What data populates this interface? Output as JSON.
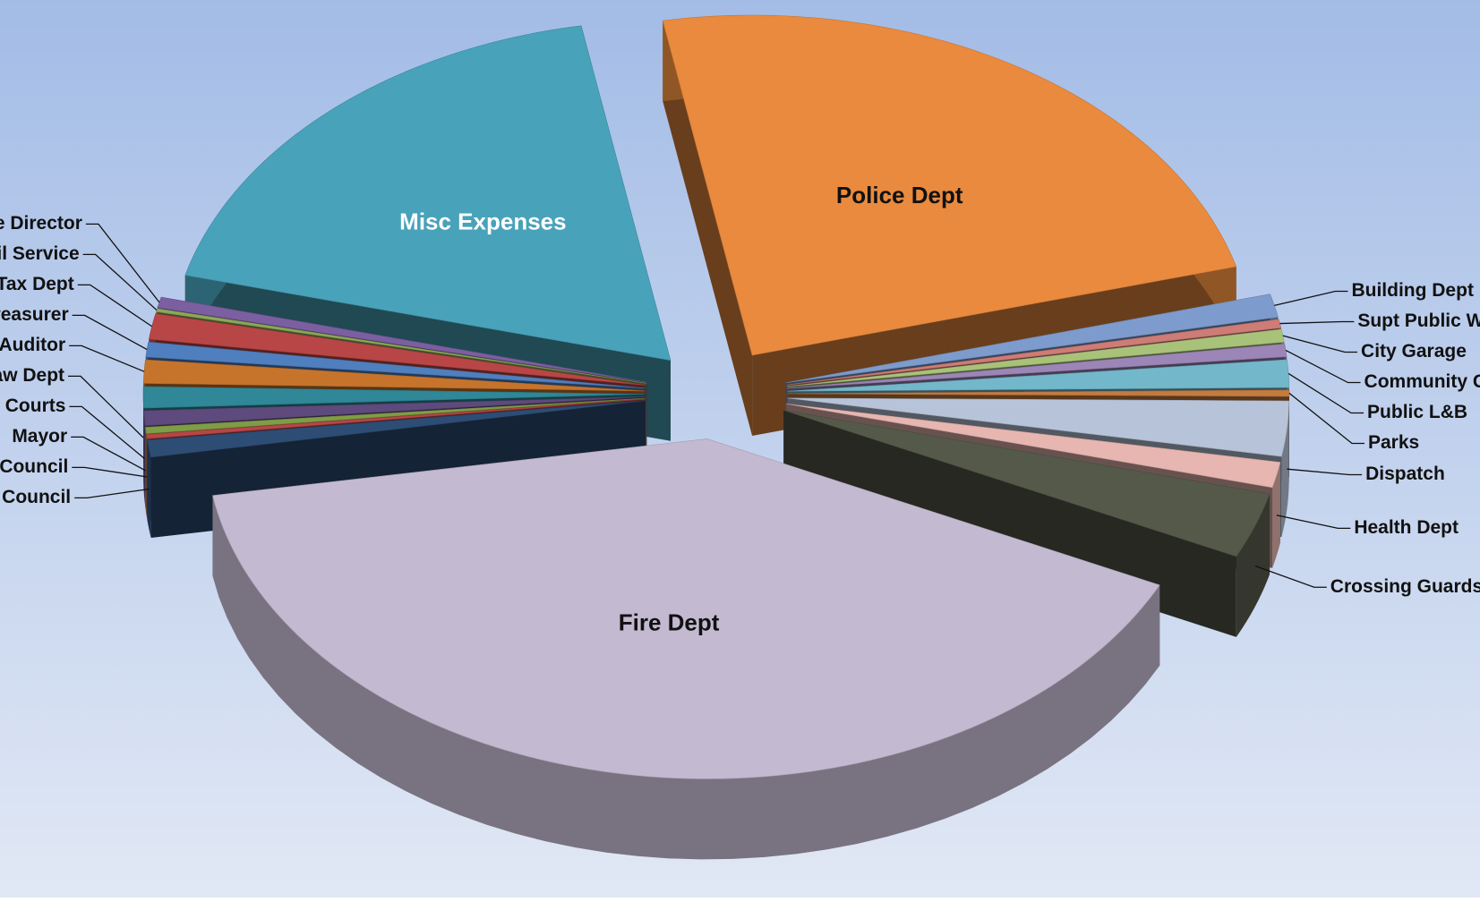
{
  "chart_data": {
    "type": "pie",
    "title": "",
    "style": "3D exploded pie",
    "slices": [
      {
        "label": "Police Dept",
        "value": 23.5,
        "color": "#E98A3E",
        "label_style": "inside-dark"
      },
      {
        "label": "Building Dept",
        "value": 1.1,
        "color": "#7D9BCC",
        "label_style": "callout"
      },
      {
        "label": "Supt Public Works",
        "value": 0.4,
        "color": "#CE7C76",
        "label_style": "callout"
      },
      {
        "label": "City Garage",
        "value": 0.6,
        "color": "#A9C27A",
        "label_style": "callout"
      },
      {
        "label": "Community Center",
        "value": 0.6,
        "color": "#9B86B7",
        "label_style": "callout"
      },
      {
        "label": "Public L&B",
        "value": 1.3,
        "color": "#73B7CB",
        "label_style": "callout"
      },
      {
        "label": "Parks",
        "value": 0.3,
        "color": "#C47B3F",
        "label_style": "callout"
      },
      {
        "label": "Dispatch",
        "value": 2.6,
        "color": "#B7C3D9",
        "label_style": "callout"
      },
      {
        "label": "Health Dept",
        "value": 1.2,
        "color": "#E7B6B0",
        "label_style": "callout"
      },
      {
        "label": "Crossing Guards",
        "value": 3.1,
        "color": "#55594A",
        "label_style": "callout"
      },
      {
        "label": "Fire Dept",
        "value": 40.0,
        "color": "#C3B9D0",
        "label_style": "inside-dark"
      },
      {
        "label": "City Council",
        "value": 0.8,
        "color": "#2D4D75",
        "label_style": "callout"
      },
      {
        "label": "Clerk of Council",
        "value": 0.2,
        "color": "#B64747",
        "label_style": "callout"
      },
      {
        "label": "Mayor",
        "value": 0.3,
        "color": "#7F9D46",
        "label_style": "callout"
      },
      {
        "label": "Clerk of Courts",
        "value": 0.7,
        "color": "#5E4A7C",
        "label_style": "callout"
      },
      {
        "label": "Law Dept",
        "value": 1.0,
        "color": "#2F8798",
        "label_style": "callout"
      },
      {
        "label": "Auditor",
        "value": 1.1,
        "color": "#C6742C",
        "label_style": "callout"
      },
      {
        "label": "Treasurer",
        "value": 0.7,
        "color": "#4F7FBE",
        "label_style": "callout"
      },
      {
        "label": "Tax Dept",
        "value": 1.2,
        "color": "#B94646",
        "label_style": "callout"
      },
      {
        "label": "Civil Service",
        "value": 0.15,
        "color": "#8CA85A",
        "label_style": "callout"
      },
      {
        "label": "Safety/Service Director",
        "value": 0.5,
        "color": "#7C5FA0",
        "label_style": "callout"
      },
      {
        "label": "Misc Expenses",
        "value": 18.0,
        "color": "#48A2BA",
        "label_style": "inside-light"
      }
    ]
  }
}
